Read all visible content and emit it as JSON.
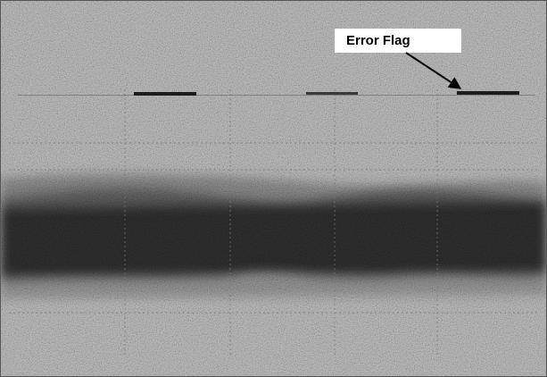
{
  "annotation": {
    "label": "Error Flag"
  }
}
